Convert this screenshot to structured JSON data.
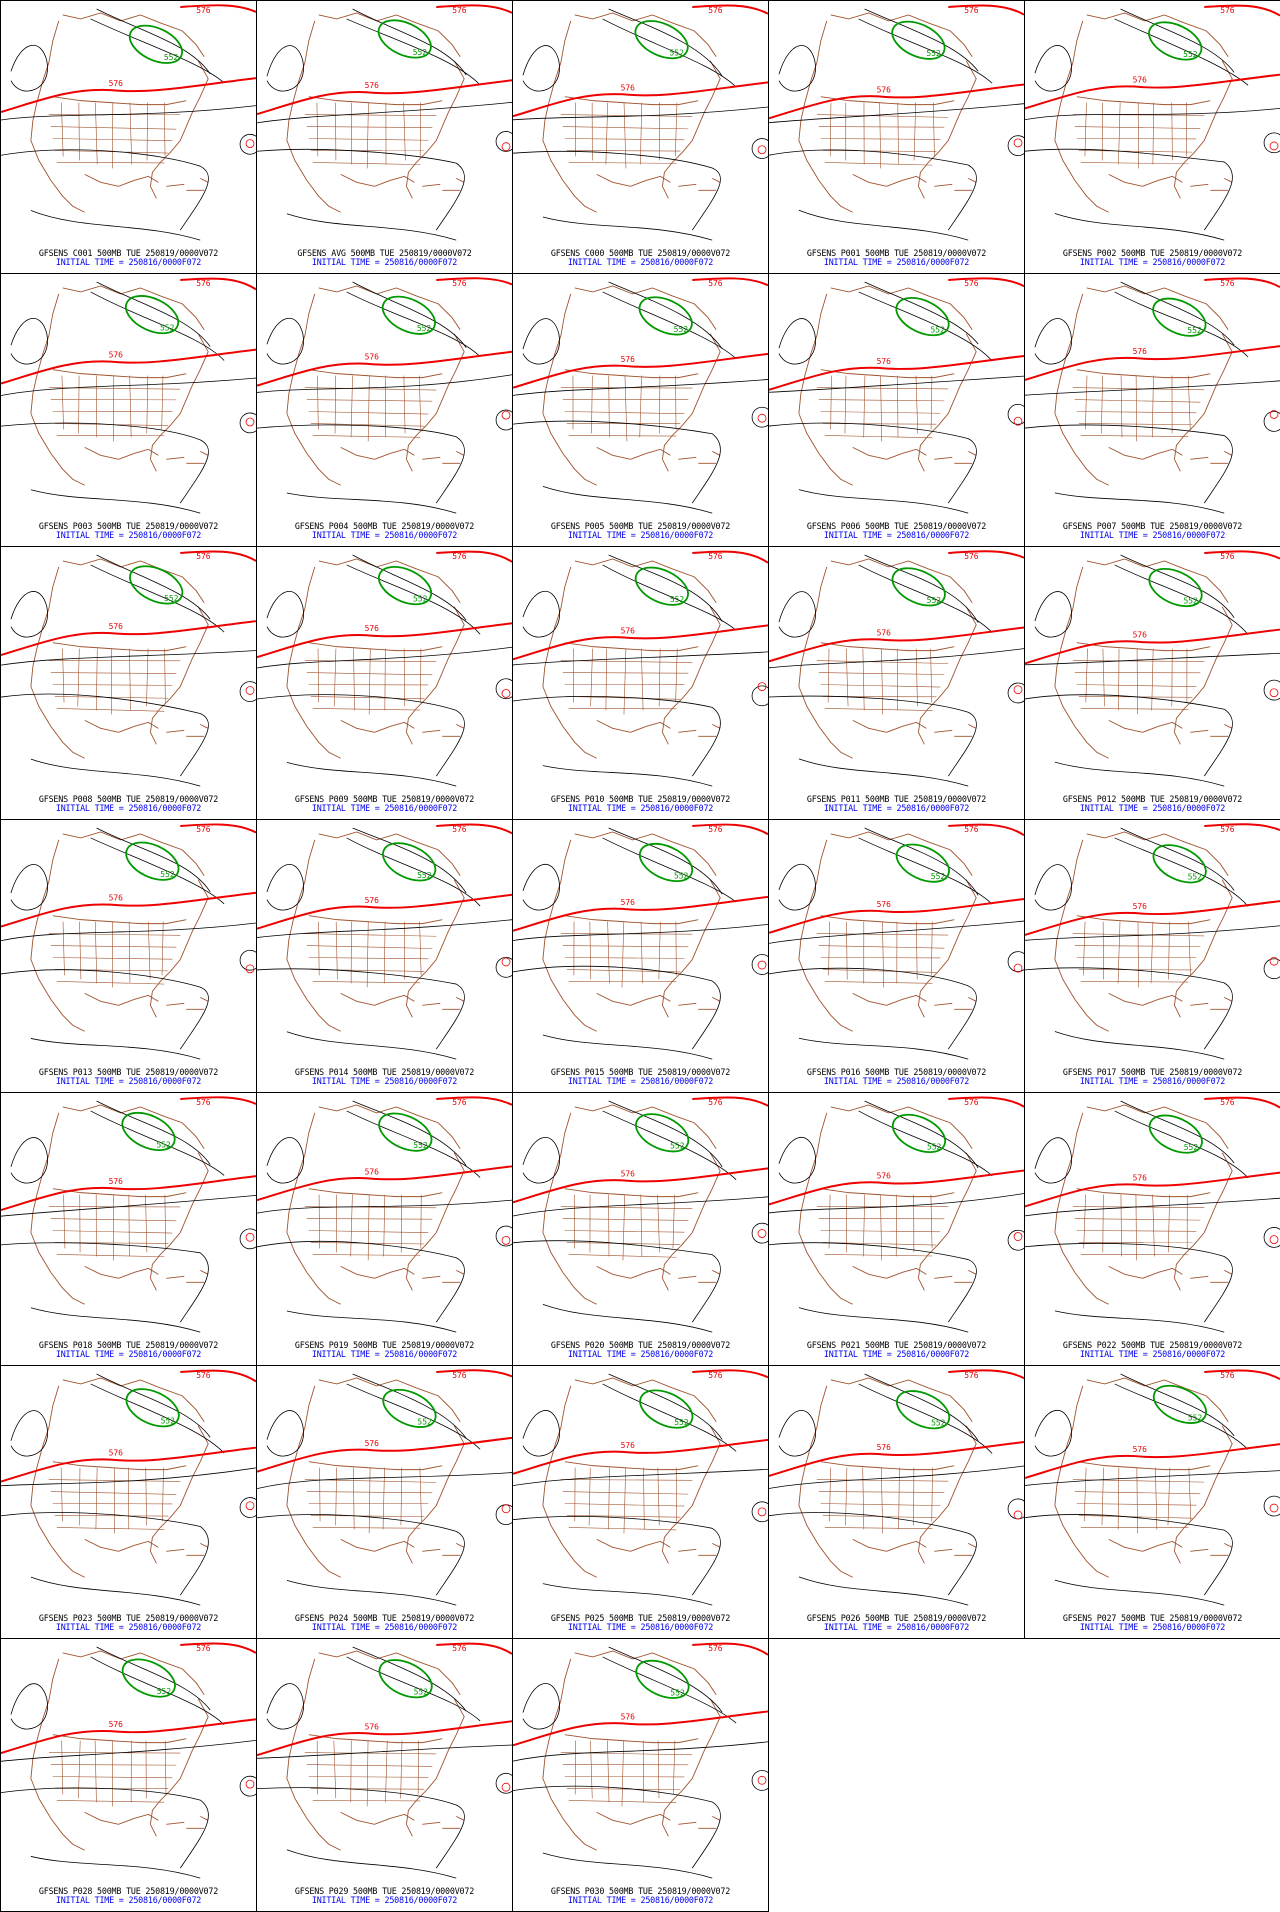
{
  "panels": [
    {
      "title": "GFSENS C001 500MB TUE 250819/0000V072",
      "init": "INITIAL TIME = 250816/0000F072"
    },
    {
      "title": "GFSENS AVG 500MB TUE 250819/0000V072",
      "init": "INITIAL TIME = 250816/0000F072"
    },
    {
      "title": "GFSENS C000 500MB TUE 250819/0000V072",
      "init": "INITIAL TIME = 250816/0000F072"
    },
    {
      "title": "GFSENS P001 500MB TUE 250819/0000V072",
      "init": "INITIAL TIME = 250816/0000F072"
    },
    {
      "title": "GFSENS P002 500MB TUE 250819/0000V072",
      "init": "INITIAL TIME = 250816/0000F072"
    },
    {
      "title": "GFSENS P003 500MB TUE 250819/0000V072",
      "init": "INITIAL TIME = 250816/0000F072"
    },
    {
      "title": "GFSENS P004 500MB TUE 250819/0000V072",
      "init": "INITIAL TIME = 250816/0000F072"
    },
    {
      "title": "GFSENS P005 500MB TUE 250819/0000V072",
      "init": "INITIAL TIME = 250816/0000F072"
    },
    {
      "title": "GFSENS P006 500MB TUE 250819/0000V072",
      "init": "INITIAL TIME = 250816/0000F072"
    },
    {
      "title": "GFSENS P007 500MB TUE 250819/0000V072",
      "init": "INITIAL TIME = 250816/0000F072"
    },
    {
      "title": "GFSENS P008 500MB TUE 250819/0000V072",
      "init": "INITIAL TIME = 250816/0000F072"
    },
    {
      "title": "GFSENS P009 500MB TUE 250819/0000V072",
      "init": "INITIAL TIME = 250816/0000F072"
    },
    {
      "title": "GFSENS P010 500MB TUE 250819/0000V072",
      "init": "INITIAL TIME = 250816/0000F072"
    },
    {
      "title": "GFSENS P011 500MB TUE 250819/0000V072",
      "init": "INITIAL TIME = 250816/0000F072"
    },
    {
      "title": "GFSENS P012 500MB TUE 250819/0000V072",
      "init": "INITIAL TIME = 250816/0000F072"
    },
    {
      "title": "GFSENS P013 500MB TUE 250819/0000V072",
      "init": "INITIAL TIME = 250816/0000F072"
    },
    {
      "title": "GFSENS P014 500MB TUE 250819/0000V072",
      "init": "INITIAL TIME = 250816/0000F072"
    },
    {
      "title": "GFSENS P015 500MB TUE 250819/0000V072",
      "init": "INITIAL TIME = 250816/0000F072"
    },
    {
      "title": "GFSENS P016 500MB TUE 250819/0000V072",
      "init": "INITIAL TIME = 250816/0000F072"
    },
    {
      "title": "GFSENS P017 500MB TUE 250819/0000V072",
      "init": "INITIAL TIME = 250816/0000F072"
    },
    {
      "title": "GFSENS P018 500MB TUE 250819/0000V072",
      "init": "INITIAL TIME = 250816/0000F072"
    },
    {
      "title": "GFSENS P019 500MB TUE 250819/0000V072",
      "init": "INITIAL TIME = 250816/0000F072"
    },
    {
      "title": "GFSENS P020 500MB TUE 250819/0000V072",
      "init": "INITIAL TIME = 250816/0000F072"
    },
    {
      "title": "GFSENS P021 500MB TUE 250819/0000V072",
      "init": "INITIAL TIME = 250816/0000F072"
    },
    {
      "title": "GFSENS P022 500MB TUE 250819/0000V072",
      "init": "INITIAL TIME = 250816/0000F072"
    },
    {
      "title": "GFSENS P023 500MB TUE 250819/0000V072",
      "init": "INITIAL TIME = 250816/0000F072"
    },
    {
      "title": "GFSENS P024 500MB TUE 250819/0000V072",
      "init": "INITIAL TIME = 250816/0000F072"
    },
    {
      "title": "GFSENS P025 500MB TUE 250819/0000V072",
      "init": "INITIAL TIME = 250816/0000F072"
    },
    {
      "title": "GFSENS P026 500MB TUE 250819/0000V072",
      "init": "INITIAL TIME = 250816/0000F072"
    },
    {
      "title": "GFSENS P027 500MB TUE 250819/0000V072",
      "init": "INITIAL TIME = 250816/0000F072"
    },
    {
      "title": "GFSENS P028 500MB TUE 250819/0000V072",
      "init": "INITIAL TIME = 250816/0000F072"
    },
    {
      "title": "GFSENS P029 500MB TUE 250819/0000V072",
      "init": "INITIAL TIME = 250816/0000F072"
    },
    {
      "title": "GFSENS P030 500MB TUE 250819/0000V072",
      "init": "INITIAL TIME = 250816/0000F072"
    }
  ],
  "contour_labels": {
    "ridge_576": "576",
    "trough_552": "552",
    "upper_576": "576",
    "west_552": "552"
  },
  "colors": {
    "contour_576": "#ee0000",
    "contour_552": "#009900",
    "contour_general": "#000000",
    "map_boundaries": "#a0522d",
    "caption_title": "#000000",
    "caption_init": "#0000ee",
    "panel_border": "#000000",
    "background": "#ffffff"
  }
}
